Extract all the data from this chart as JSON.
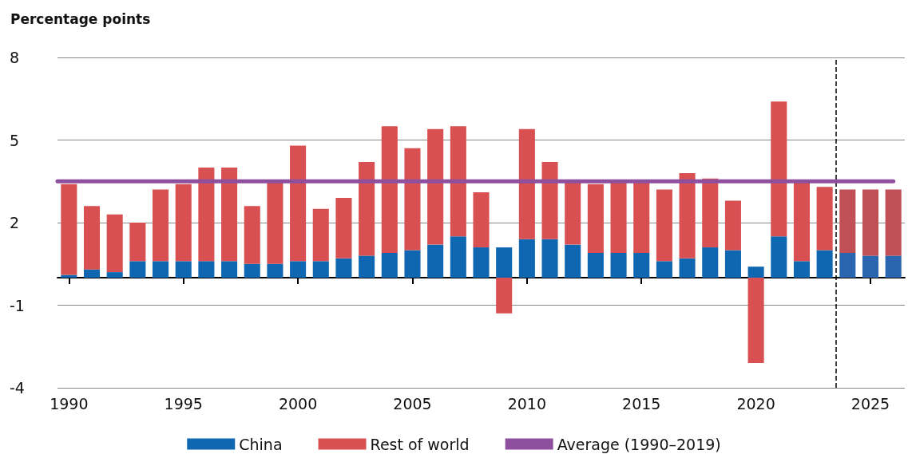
{
  "chart_data": {
    "type": "bar",
    "stacked": true,
    "ylabel": "Percentage points",
    "x": [
      1990,
      1991,
      1992,
      1993,
      1994,
      1995,
      1996,
      1997,
      1998,
      1999,
      2000,
      2001,
      2002,
      2003,
      2004,
      2005,
      2006,
      2007,
      2008,
      2009,
      2010,
      2011,
      2012,
      2013,
      2014,
      2015,
      2016,
      2017,
      2018,
      2019,
      2020,
      2021,
      2022,
      2023,
      2024,
      2025,
      2026
    ],
    "series": [
      {
        "name": "China",
        "color": "#0f67b1",
        "colors": [
          "#0f67b1",
          "#0f67b1",
          "#0f67b1",
          "#0f67b1",
          "#0f67b1",
          "#0f67b1",
          "#0f67b1",
          "#0f67b1",
          "#0f67b1",
          "#0f67b1",
          "#0f67b1",
          "#0f67b1",
          "#0f67b1",
          "#0f67b1",
          "#0f67b1",
          "#0f67b1",
          "#0f67b1",
          "#0f67b1",
          "#0f67b1",
          "#0f67b1",
          "#0f67b1",
          "#0f67b1",
          "#0f67b1",
          "#0f67b1",
          "#0f67b1",
          "#0f67b1",
          "#0f67b1",
          "#0f67b1",
          "#0f67b1",
          "#0f67b1",
          "#0f67b1",
          "#0f67b1",
          "#0f67b1",
          "#0f67b1",
          "#2a66b0",
          "#2a66b0",
          "#2a66b0"
        ],
        "values": [
          0.1,
          0.3,
          0.2,
          0.6,
          0.6,
          0.6,
          0.6,
          0.6,
          0.5,
          0.5,
          0.6,
          0.6,
          0.7,
          0.8,
          0.9,
          1.0,
          1.2,
          1.5,
          1.1,
          1.1,
          1.4,
          1.4,
          1.2,
          0.9,
          0.9,
          0.9,
          0.6,
          0.7,
          1.1,
          1.0,
          0.4,
          1.5,
          0.6,
          1.0,
          0.9,
          0.8,
          0.8
        ]
      },
      {
        "name": "Rest of world",
        "color": "#d95052",
        "colors": [
          "#d95052",
          "#d95052",
          "#d95052",
          "#d95052",
          "#d95052",
          "#d95052",
          "#d95052",
          "#d95052",
          "#d95052",
          "#d95052",
          "#d95052",
          "#d95052",
          "#d95052",
          "#d95052",
          "#d95052",
          "#d95052",
          "#d95052",
          "#d95052",
          "#d95052",
          "#d95052",
          "#d95052",
          "#d95052",
          "#d95052",
          "#d95052",
          "#d95052",
          "#d95052",
          "#d95052",
          "#d95052",
          "#d95052",
          "#d95052",
          "#d95052",
          "#d95052",
          "#d95052",
          "#d95052",
          "#c05055",
          "#c05055",
          "#c05055"
        ],
        "values": [
          3.3,
          2.3,
          2.1,
          1.4,
          2.6,
          2.8,
          3.4,
          3.4,
          2.1,
          3.0,
          4.2,
          1.9,
          2.2,
          3.4,
          4.6,
          3.7,
          4.2,
          4.0,
          2.0,
          -1.3,
          4.0,
          2.8,
          2.3,
          2.5,
          2.6,
          2.6,
          2.6,
          3.1,
          2.5,
          1.8,
          -3.1,
          4.9,
          2.9,
          2.3,
          2.3,
          2.4,
          2.4
        ]
      },
      {
        "name": "Average (1990–2019)",
        "type": "line",
        "color": "#8e4f9e",
        "x": [
          1989.5,
          2026
        ],
        "values": [
          3.5,
          3.5
        ]
      }
    ],
    "xlim": [
      1989.5,
      2026.5
    ],
    "xticks": [
      1990,
      1995,
      2000,
      2005,
      2010,
      2015,
      2020,
      2025
    ],
    "ylim": [
      -4,
      8
    ],
    "yticks": [
      8,
      5,
      2,
      -1,
      -4
    ],
    "ref_lines": [
      {
        "axis": "x",
        "value": 2023.5,
        "color": "#000000",
        "line_style": "dashed"
      }
    ],
    "grid": "y",
    "legend": "bottom",
    "marker": "none"
  }
}
